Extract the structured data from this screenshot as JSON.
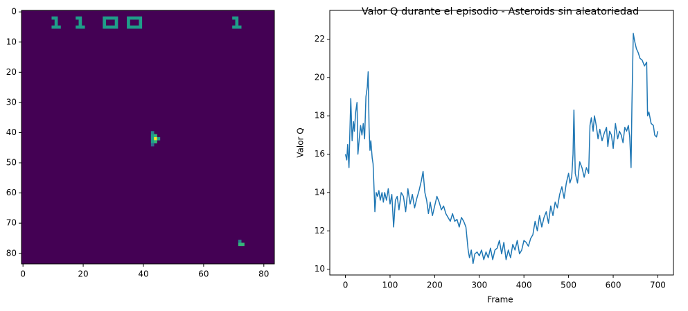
{
  "chart_data": [
    {
      "type": "image",
      "colormap": "viridis",
      "fill_value": 0,
      "xlim": [
        -0.5,
        83.5
      ],
      "ylim": [
        83.5,
        -0.5
      ],
      "xticks": [
        0,
        20,
        40,
        60,
        80
      ],
      "yticks": [
        0,
        10,
        20,
        30,
        40,
        50,
        60,
        70,
        80
      ],
      "pixels": {
        "x": [
          10,
          11,
          11,
          11,
          10,
          11,
          12,
          18,
          19,
          19,
          19,
          18,
          19,
          20,
          27,
          28,
          29,
          30,
          31,
          27,
          31,
          27,
          31,
          27,
          28,
          29,
          30,
          31,
          35,
          36,
          37,
          38,
          39,
          35,
          39,
          35,
          39,
          35,
          36,
          37,
          38,
          39,
          70,
          71,
          71,
          71,
          70,
          71,
          72,
          43,
          43,
          43,
          43,
          43,
          44,
          44,
          44,
          45,
          72,
          72,
          73
        ],
        "y": [
          2,
          2,
          3,
          4,
          5,
          5,
          5,
          2,
          2,
          3,
          4,
          5,
          5,
          5,
          2,
          2,
          2,
          2,
          2,
          3,
          3,
          4,
          4,
          5,
          5,
          5,
          5,
          5,
          2,
          2,
          2,
          2,
          2,
          3,
          3,
          4,
          4,
          5,
          5,
          5,
          5,
          5,
          2,
          2,
          3,
          4,
          5,
          5,
          5,
          40,
          41,
          42,
          43,
          44,
          41,
          42,
          43,
          42,
          76,
          77,
          77
        ],
        "values": [
          0.5,
          0.5,
          0.5,
          0.5,
          0.5,
          0.5,
          0.5,
          0.5,
          0.5,
          0.5,
          0.5,
          0.5,
          0.5,
          0.5,
          0.5,
          0.5,
          0.5,
          0.5,
          0.5,
          0.5,
          0.5,
          0.5,
          0.5,
          0.5,
          0.5,
          0.5,
          0.5,
          0.5,
          0.5,
          0.5,
          0.5,
          0.5,
          0.5,
          0.5,
          0.5,
          0.5,
          0.5,
          0.5,
          0.5,
          0.5,
          0.5,
          0.5,
          0.5,
          0.5,
          0.5,
          0.5,
          0.5,
          0.5,
          0.5,
          0.45,
          0.6,
          0.6,
          0.6,
          0.35,
          0.7,
          1.0,
          0.7,
          0.55,
          0.45,
          0.7,
          0.7
        ]
      }
    },
    {
      "type": "line",
      "title": "Valor Q durante el episodio - Asteroids sin aleatoriedad",
      "x_label": "Frame",
      "y_label": "Valor Q",
      "xlim": [
        -35,
        735
      ],
      "ylim": [
        9.7,
        23.5
      ],
      "xticks": [
        0,
        100,
        200,
        300,
        400,
        500,
        600,
        700
      ],
      "yticks": [
        10,
        12,
        14,
        16,
        18,
        20,
        22
      ],
      "x": [
        0,
        3,
        5,
        8,
        10,
        12,
        15,
        18,
        20,
        23,
        26,
        28,
        31,
        34,
        37,
        40,
        43,
        46,
        49,
        51,
        53,
        55,
        57,
        60,
        62,
        64,
        66,
        69,
        72,
        75,
        78,
        82,
        85,
        88,
        92,
        96,
        100,
        104,
        108,
        112,
        116,
        120,
        125,
        130,
        135,
        140,
        145,
        150,
        155,
        160,
        165,
        170,
        174,
        178,
        182,
        186,
        190,
        195,
        200,
        205,
        210,
        215,
        220,
        225,
        230,
        235,
        240,
        245,
        250,
        255,
        260,
        265,
        270,
        275,
        278,
        282,
        286,
        290,
        295,
        300,
        305,
        310,
        315,
        320,
        325,
        330,
        335,
        340,
        345,
        350,
        355,
        360,
        365,
        370,
        375,
        380,
        385,
        390,
        395,
        400,
        405,
        410,
        415,
        420,
        425,
        430,
        435,
        440,
        445,
        450,
        455,
        460,
        465,
        470,
        475,
        480,
        485,
        490,
        495,
        500,
        503,
        507,
        510,
        512,
        515,
        520,
        525,
        530,
        535,
        540,
        545,
        548,
        551,
        555,
        558,
        562,
        566,
        570,
        575,
        580,
        585,
        588,
        592,
        596,
        600,
        605,
        610,
        614,
        618,
        622,
        626,
        630,
        634,
        637,
        640,
        642,
        645,
        648,
        652,
        656,
        660,
        665,
        670,
        675,
        677,
        680,
        685,
        690,
        693,
        697,
        700
      ],
      "series": [
        {
          "color": "#1f77b4",
          "values": [
            16.0,
            15.7,
            16.5,
            15.3,
            17.2,
            18.9,
            16.7,
            17.7,
            17.2,
            18.2,
            18.7,
            16.0,
            16.8,
            17.5,
            17.0,
            17.6,
            16.8,
            19.0,
            19.5,
            20.3,
            17.4,
            16.2,
            16.7,
            15.8,
            15.5,
            14.3,
            13.0,
            14.0,
            13.8,
            14.1,
            13.6,
            14.0,
            13.5,
            14.0,
            13.6,
            14.2,
            13.4,
            13.9,
            12.2,
            13.6,
            13.8,
            13.1,
            14.0,
            13.8,
            13.0,
            14.2,
            13.4,
            13.9,
            13.2,
            13.7,
            14.1,
            14.6,
            15.1,
            14.0,
            13.6,
            12.9,
            13.5,
            12.8,
            13.3,
            13.8,
            13.5,
            13.1,
            13.3,
            12.9,
            12.7,
            12.5,
            12.9,
            12.5,
            12.6,
            12.2,
            12.7,
            12.5,
            12.2,
            11.0,
            10.6,
            11.0,
            10.3,
            10.8,
            10.9,
            10.7,
            11.0,
            10.5,
            10.9,
            10.6,
            11.1,
            10.5,
            11.0,
            11.1,
            11.5,
            10.8,
            11.4,
            10.5,
            11.0,
            10.6,
            11.3,
            11.0,
            11.5,
            10.8,
            11.0,
            11.5,
            11.4,
            11.2,
            11.6,
            11.8,
            12.5,
            12.0,
            12.8,
            12.2,
            12.7,
            13.0,
            12.4,
            13.3,
            12.8,
            13.5,
            13.2,
            13.9,
            14.3,
            13.7,
            14.5,
            15.0,
            14.5,
            14.8,
            16.0,
            18.3,
            15.0,
            14.5,
            15.6,
            15.3,
            14.8,
            15.3,
            15.0,
            17.5,
            17.9,
            17.2,
            18.0,
            17.5,
            16.8,
            17.3,
            16.7,
            17.1,
            17.4,
            16.4,
            17.2,
            17.0,
            16.3,
            17.6,
            16.8,
            17.2,
            17.0,
            16.6,
            17.4,
            17.2,
            17.5,
            16.9,
            15.3,
            18.6,
            22.3,
            21.9,
            21.5,
            21.3,
            21.0,
            20.9,
            20.6,
            20.8,
            18.0,
            18.2,
            17.6,
            17.5,
            17.0,
            16.9,
            17.2
          ]
        }
      ]
    }
  ]
}
